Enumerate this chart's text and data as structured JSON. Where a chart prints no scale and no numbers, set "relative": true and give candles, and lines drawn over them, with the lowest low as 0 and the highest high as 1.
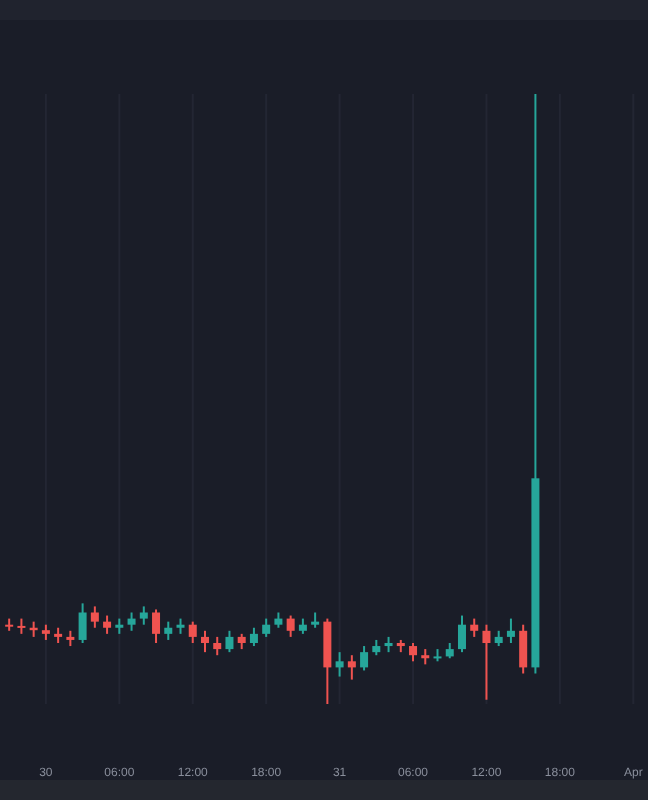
{
  "chart_data": {
    "type": "candlestick",
    "relative": true,
    "grid": "x",
    "xlim": [
      "--03-29T20:15",
      "--04-01T01:12"
    ],
    "xticks": [
      {
        "value": "--03-30",
        "label": "30"
      },
      {
        "value": "--03-30T06:00",
        "label": "06:00"
      },
      {
        "value": "--03-30T12:00",
        "label": "12:00"
      },
      {
        "value": "--03-30T18:00",
        "label": "18:00"
      },
      {
        "value": "--03-31",
        "label": "31"
      },
      {
        "value": "--03-31T06:00",
        "label": "06:00"
      },
      {
        "value": "--03-31T12:00",
        "label": "12:00"
      },
      {
        "value": "--03-31T18:00",
        "label": "18:00"
      },
      {
        "value": "--04-01",
        "label": "Apr"
      }
    ],
    "x": [
      "--03-29T21:00",
      "--03-29T22:00",
      "--03-29T23:00",
      "--03-30T00:00",
      "--03-30T01:00",
      "--03-30T02:00",
      "--03-30T03:00",
      "--03-30T04:00",
      "--03-30T05:00",
      "--03-30T06:00",
      "--03-30T07:00",
      "--03-30T08:00",
      "--03-30T09:00",
      "--03-30T10:00",
      "--03-30T11:00",
      "--03-30T12:00",
      "--03-30T13:00",
      "--03-30T14:00",
      "--03-30T15:00",
      "--03-30T16:00",
      "--03-30T17:00",
      "--03-30T18:00",
      "--03-30T19:00",
      "--03-30T20:00",
      "--03-30T21:00",
      "--03-30T22:00",
      "--03-30T23:00",
      "--03-31T00:00",
      "--03-31T01:00",
      "--03-31T02:00",
      "--03-31T03:00",
      "--03-31T04:00",
      "--03-31T05:00",
      "--03-31T06:00",
      "--03-31T07:00",
      "--03-31T08:00",
      "--03-31T09:00",
      "--03-31T10:00",
      "--03-31T11:00",
      "--03-31T12:00",
      "--03-31T13:00",
      "--03-31T14:00",
      "--03-31T15:00",
      "--03-31T16:00"
    ],
    "ohlc": [
      [
        0.13,
        0.14,
        0.12,
        0.128
      ],
      [
        0.128,
        0.14,
        0.115,
        0.125
      ],
      [
        0.125,
        0.135,
        0.11,
        0.121
      ],
      [
        0.121,
        0.13,
        0.105,
        0.115
      ],
      [
        0.115,
        0.125,
        0.1,
        0.11
      ],
      [
        0.11,
        0.12,
        0.095,
        0.105
      ],
      [
        0.105,
        0.165,
        0.1,
        0.15
      ],
      [
        0.15,
        0.16,
        0.125,
        0.135
      ],
      [
        0.135,
        0.145,
        0.115,
        0.125
      ],
      [
        0.125,
        0.14,
        0.115,
        0.13
      ],
      [
        0.13,
        0.15,
        0.12,
        0.14
      ],
      [
        0.14,
        0.16,
        0.13,
        0.15
      ],
      [
        0.15,
        0.155,
        0.1,
        0.115
      ],
      [
        0.115,
        0.135,
        0.105,
        0.125
      ],
      [
        0.125,
        0.14,
        0.115,
        0.13
      ],
      [
        0.13,
        0.135,
        0.1,
        0.11
      ],
      [
        0.11,
        0.12,
        0.085,
        0.1
      ],
      [
        0.1,
        0.11,
        0.08,
        0.09
      ],
      [
        0.09,
        0.12,
        0.085,
        0.11
      ],
      [
        0.11,
        0.115,
        0.09,
        0.1
      ],
      [
        0.1,
        0.125,
        0.095,
        0.115
      ],
      [
        0.115,
        0.14,
        0.11,
        0.13
      ],
      [
        0.13,
        0.15,
        0.125,
        0.14
      ],
      [
        0.14,
        0.145,
        0.11,
        0.12
      ],
      [
        0.12,
        0.14,
        0.115,
        0.13
      ],
      [
        0.13,
        0.15,
        0.125,
        0.135
      ],
      [
        0.135,
        0.14,
        0,
        0.06
      ],
      [
        0.06,
        0.085,
        0.045,
        0.07
      ],
      [
        0.07,
        0.08,
        0.04,
        0.06
      ],
      [
        0.06,
        0.095,
        0.055,
        0.085
      ],
      [
        0.085,
        0.105,
        0.08,
        0.095
      ],
      [
        0.095,
        0.11,
        0.085,
        0.1
      ],
      [
        0.1,
        0.105,
        0.085,
        0.095
      ],
      [
        0.095,
        0.1,
        0.07,
        0.08
      ],
      [
        0.08,
        0.09,
        0.065,
        0.075
      ],
      [
        0.075,
        0.09,
        0.07,
        0.078
      ],
      [
        0.078,
        0.1,
        0.075,
        0.09
      ],
      [
        0.09,
        0.145,
        0.085,
        0.13
      ],
      [
        0.13,
        0.14,
        0.11,
        0.12
      ],
      [
        0.12,
        0.13,
        0.007,
        0.1
      ],
      [
        0.1,
        0.12,
        0.095,
        0.11
      ],
      [
        0.11,
        0.14,
        0.1,
        0.12
      ],
      [
        0.12,
        0.13,
        0.05,
        0.06
      ],
      [
        0.06,
        1,
        0.05,
        0.37
      ]
    ],
    "colors": [
      "#ef5350",
      "#ef5350",
      "#ef5350",
      "#ef5350",
      "#ef5350",
      "#ef5350",
      "#26a69a",
      "#ef5350",
      "#ef5350",
      "#26a69a",
      "#26a69a",
      "#26a69a",
      "#ef5350",
      "#26a69a",
      "#26a69a",
      "#ef5350",
      "#ef5350",
      "#ef5350",
      "#26a69a",
      "#ef5350",
      "#26a69a",
      "#26a69a",
      "#26a69a",
      "#ef5350",
      "#26a69a",
      "#26a69a",
      "#ef5350",
      "#26a69a",
      "#ef5350",
      "#26a69a",
      "#26a69a",
      "#26a69a",
      "#ef5350",
      "#ef5350",
      "#ef5350",
      "#26a69a",
      "#26a69a",
      "#26a69a",
      "#ef5350",
      "#ef5350",
      "#26a69a",
      "#26a69a",
      "#ef5350",
      "#26a69a"
    ]
  }
}
